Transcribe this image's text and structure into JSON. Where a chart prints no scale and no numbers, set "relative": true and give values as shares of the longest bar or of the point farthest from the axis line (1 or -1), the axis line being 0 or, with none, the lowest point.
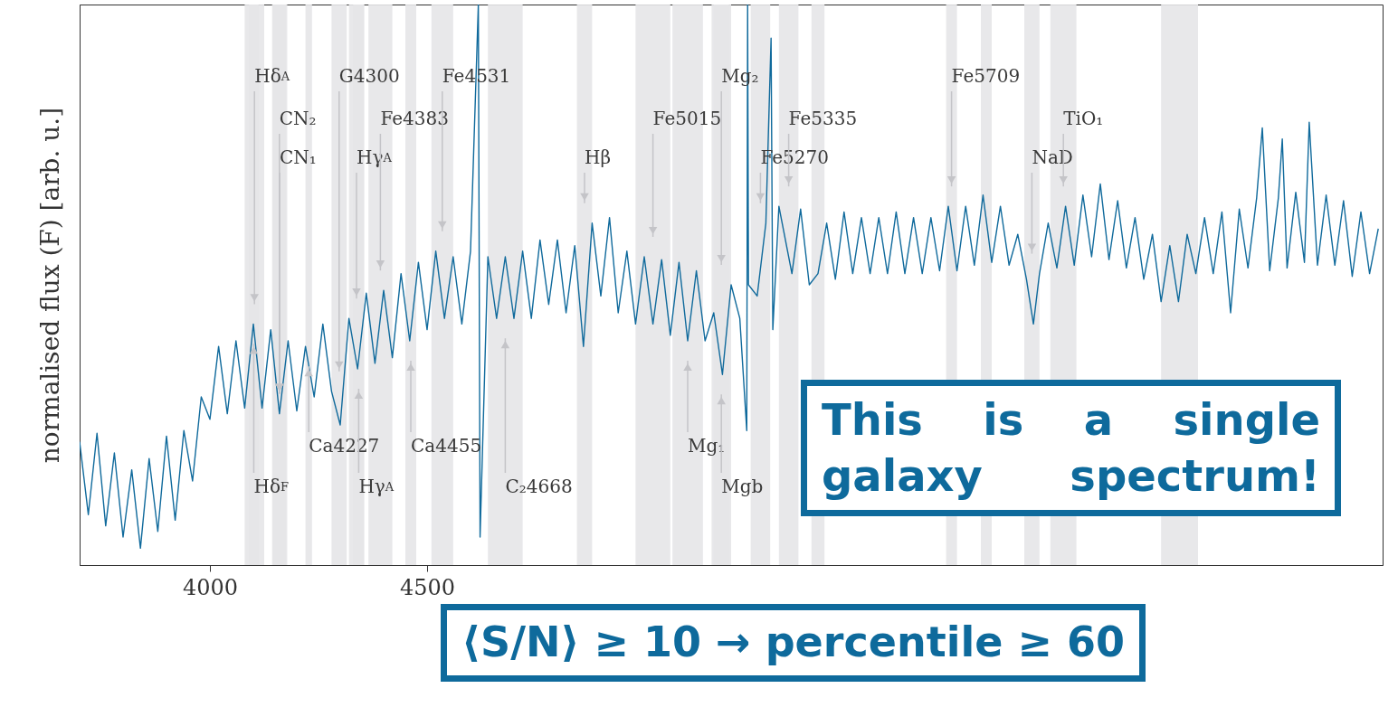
{
  "chart_data": {
    "type": "line",
    "relative": true,
    "ylabel": "normalised flux (F) [arb. u.]",
    "xlim": [
      3700,
      6700
    ],
    "xticks": [
      4000,
      4500
    ],
    "x": [
      3700,
      3720,
      3740,
      3760,
      3780,
      3800,
      3820,
      3840,
      3860,
      3880,
      3900,
      3920,
      3940,
      3960,
      3980,
      4000,
      4020,
      4040,
      4060,
      4080,
      4100,
      4120,
      4140,
      4160,
      4180,
      4200,
      4220,
      4240,
      4260,
      4280,
      4300,
      4320,
      4340,
      4360,
      4380,
      4400,
      4420,
      4440,
      4460,
      4480,
      4500,
      4520,
      4540,
      4560,
      4580,
      4600,
      4618,
      4622,
      4640,
      4660,
      4680,
      4700,
      4720,
      4740,
      4760,
      4780,
      4800,
      4820,
      4840,
      4860,
      4880,
      4900,
      4920,
      4940,
      4960,
      4980,
      5000,
      5020,
      5040,
      5060,
      5080,
      5100,
      5120,
      5140,
      5160,
      5180,
      5200,
      5220,
      5236,
      5238,
      5240,
      5260,
      5280,
      5292,
      5296,
      5310,
      5340,
      5360,
      5380,
      5400,
      5420,
      5440,
      5460,
      5480,
      5500,
      5520,
      5540,
      5560,
      5580,
      5600,
      5620,
      5640,
      5660,
      5680,
      5700,
      5720,
      5740,
      5760,
      5780,
      5800,
      5820,
      5840,
      5860,
      5880,
      5896,
      5910,
      5930,
      5950,
      5970,
      5990,
      6010,
      6030,
      6050,
      6070,
      6090,
      6110,
      6130,
      6150,
      6170,
      6190,
      6210,
      6230,
      6250,
      6270,
      6290,
      6310,
      6330,
      6350,
      6370,
      6390,
      6410,
      6423,
      6440,
      6460,
      6469,
      6480,
      6500,
      6520,
      6531,
      6550,
      6570,
      6590,
      6610,
      6630,
      6650,
      6670,
      6690
    ],
    "series": [
      {
        "color": "#106a9c",
        "values": [
          0.22,
          0.09,
          0.235,
          0.07,
          0.2,
          0.05,
          0.17,
          0.03,
          0.19,
          0.06,
          0.23,
          0.08,
          0.24,
          0.15,
          0.3,
          0.26,
          0.39,
          0.27,
          0.4,
          0.28,
          0.43,
          0.28,
          0.42,
          0.27,
          0.4,
          0.275,
          0.39,
          0.3,
          0.43,
          0.31,
          0.25,
          0.44,
          0.35,
          0.485,
          0.36,
          0.49,
          0.37,
          0.52,
          0.4,
          0.54,
          0.42,
          0.56,
          0.44,
          0.55,
          0.43,
          0.56,
          1.0,
          0.05,
          0.55,
          0.44,
          0.55,
          0.44,
          0.56,
          0.44,
          0.58,
          0.465,
          0.58,
          0.45,
          0.57,
          0.39,
          0.61,
          0.48,
          0.62,
          0.45,
          0.56,
          0.43,
          0.55,
          0.43,
          0.545,
          0.41,
          0.54,
          0.4,
          0.525,
          0.4,
          0.45,
          0.34,
          0.5,
          0.44,
          0.24,
          1.0,
          0.5,
          0.48,
          0.61,
          0.94,
          0.42,
          0.64,
          0.52,
          0.635,
          0.5,
          0.52,
          0.61,
          0.51,
          0.63,
          0.52,
          0.62,
          0.52,
          0.62,
          0.52,
          0.63,
          0.52,
          0.62,
          0.52,
          0.62,
          0.525,
          0.64,
          0.525,
          0.64,
          0.535,
          0.66,
          0.54,
          0.64,
          0.535,
          0.59,
          0.51,
          0.43,
          0.52,
          0.61,
          0.53,
          0.64,
          0.535,
          0.66,
          0.55,
          0.68,
          0.545,
          0.65,
          0.53,
          0.62,
          0.51,
          0.59,
          0.47,
          0.57,
          0.47,
          0.59,
          0.52,
          0.62,
          0.52,
          0.63,
          0.45,
          0.635,
          0.53,
          0.655,
          0.78,
          0.525,
          0.655,
          0.76,
          0.53,
          0.665,
          0.54,
          0.79,
          0.535,
          0.66,
          0.535,
          0.65,
          0.515,
          0.63,
          0.52,
          0.6
        ]
      }
    ],
    "bands": [
      {
        "axis": "x",
        "from": 4080,
        "to": 4125,
        "label": "Hδ$_{A}$",
        "color": "#e6e6e8"
      },
      {
        "axis": "x",
        "from": 4090,
        "to": 4112,
        "label": "Hδ$_{F}$",
        "color": "#e6e6e8"
      },
      {
        "axis": "x",
        "from": 4145,
        "to": 4175,
        "label": "CN₂",
        "color": "#e6e6e8"
      },
      {
        "axis": "x",
        "from": 4143,
        "to": 4178,
        "label": "CN₁",
        "color": "#e6e6e8"
      },
      {
        "axis": "x",
        "from": 4220,
        "to": 4235,
        "label": "Ca4227",
        "color": "#e6e6e8"
      },
      {
        "axis": "x",
        "from": 4280,
        "to": 4315,
        "label": "G4300",
        "color": "#e6e6e8"
      },
      {
        "axis": "x",
        "from": 4320,
        "to": 4355,
        "label": "Hγ$_{A}$",
        "color": "#e6e6e8"
      },
      {
        "axis": "x",
        "from": 4330,
        "to": 4355,
        "label": "Hγ$_{A}$",
        "color": "#e6e6e8"
      },
      {
        "axis": "x",
        "from": 4365,
        "to": 4420,
        "label": "Fe4383",
        "color": "#e6e6e8"
      },
      {
        "axis": "x",
        "from": 4450,
        "to": 4475,
        "label": "Ca4455",
        "color": "#e6e6e8"
      },
      {
        "axis": "x",
        "from": 4510,
        "to": 4560,
        "label": "Fe4531",
        "color": "#e6e6e8"
      },
      {
        "axis": "x",
        "from": 4640,
        "to": 4720,
        "label": "C₂4668",
        "color": "#e6e6e8"
      },
      {
        "axis": "x",
        "from": 4845,
        "to": 4880,
        "label": "Hβ",
        "color": "#e6e6e8"
      },
      {
        "axis": "x",
        "from": 4980,
        "to": 5060,
        "label": "Fe5015",
        "color": "#e6e6e8"
      },
      {
        "axis": "x",
        "from": 5065,
        "to": 5135,
        "label": "Mg₁",
        "color": "#e6e6e8"
      },
      {
        "axis": "x",
        "from": 5155,
        "to": 5200,
        "label": "Mg₂",
        "color": "#e6e6e8"
      },
      {
        "axis": "x",
        "from": 5160,
        "to": 5195,
        "label": "Mgb",
        "color": "#e6e6e8"
      },
      {
        "axis": "x",
        "from": 5245,
        "to": 5290,
        "label": "Fe5270",
        "color": "#e6e6e8"
      },
      {
        "axis": "x",
        "from": 5310,
        "to": 5355,
        "label": "Fe5335",
        "color": "#e6e6e8"
      },
      {
        "axis": "x",
        "from": 5385,
        "to": 5415,
        "color": "#e6e6e8"
      },
      {
        "axis": "x",
        "from": 5695,
        "to": 5720,
        "label": "Fe5709",
        "color": "#e6e6e8"
      },
      {
        "axis": "x",
        "from": 5775,
        "to": 5800,
        "color": "#e6e6e8"
      },
      {
        "axis": "x",
        "from": 5875,
        "to": 5910,
        "label": "NaD",
        "color": "#e6e6e8"
      },
      {
        "axis": "x",
        "from": 5935,
        "to": 5995,
        "label": "TiO₁",
        "color": "#e6e6e8"
      },
      {
        "axis": "x",
        "from": 6190,
        "to": 6275,
        "color": "#e6e6e8"
      }
    ],
    "annotations": [
      "This is a single galaxy spectrum!",
      "⟨S/N⟩ ≥ 10 → percentile ≥ 60"
    ]
  }
}
